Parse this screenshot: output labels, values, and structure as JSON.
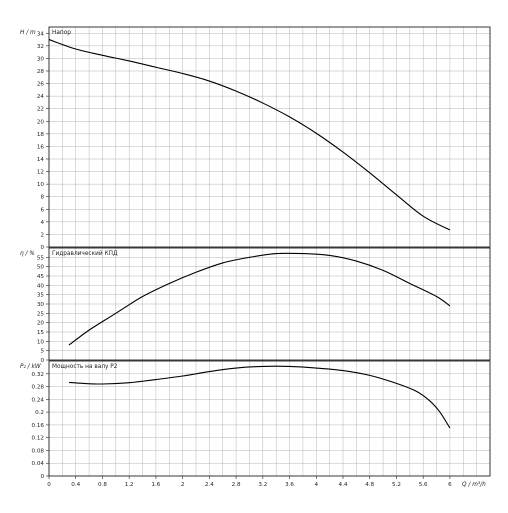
{
  "chart_data": [
    {
      "type": "line",
      "title": "Напор",
      "ylabel": "H / m",
      "ylim": [
        0,
        35
      ],
      "yticks": [
        0,
        2,
        4,
        6,
        8,
        10,
        12,
        14,
        16,
        18,
        20,
        22,
        24,
        26,
        28,
        30,
        32,
        34
      ],
      "xlim": [
        0,
        6.6
      ],
      "grid": true,
      "series": [
        {
          "x": [
            0,
            0.4,
            0.8,
            1.2,
            1.6,
            2.0,
            2.4,
            2.8,
            3.2,
            3.6,
            4.0,
            4.4,
            4.8,
            5.2,
            5.6,
            6.0
          ],
          "y": [
            33.0,
            31.5,
            30.5,
            29.6,
            28.6,
            27.6,
            26.4,
            24.8,
            22.9,
            20.7,
            18.1,
            15.1,
            11.8,
            8.3,
            4.9,
            2.7
          ]
        }
      ]
    },
    {
      "type": "line",
      "title": "Гидравлический КПД",
      "ylabel": "η / %",
      "ylim": [
        0,
        60
      ],
      "yticks": [
        0,
        5,
        10,
        15,
        20,
        25,
        30,
        35,
        40,
        45,
        50,
        55
      ],
      "xlim": [
        0,
        6.6
      ],
      "grid": true,
      "series": [
        {
          "x": [
            0.3,
            0.6,
            1.0,
            1.4,
            1.8,
            2.2,
            2.6,
            3.0,
            3.4,
            3.8,
            4.2,
            4.6,
            5.0,
            5.4,
            5.8,
            6.0
          ],
          "y": [
            8,
            16,
            25,
            34,
            41,
            47,
            52,
            55,
            57,
            57,
            56,
            53,
            48,
            41,
            34,
            29
          ]
        }
      ]
    },
    {
      "type": "line",
      "title": "Мощность на валу P2",
      "ylabel": "P₂ / kW",
      "ylim": [
        0,
        0.36
      ],
      "yticks": [
        "0",
        "0.04",
        "0.08",
        "0.12",
        "0.16",
        "0.2",
        "0.24",
        "0.28",
        "0.32"
      ],
      "xlabel": "Q / m³/h",
      "xlim": [
        0,
        6.6
      ],
      "xticks": [
        "0",
        "0.4",
        "0.8",
        "1.2",
        "1.6",
        "2",
        "2.4",
        "2.8",
        "3.2",
        "3.6",
        "4",
        "4.4",
        "4.8",
        "5.2",
        "5.6",
        "6"
      ],
      "grid": true,
      "series": [
        {
          "x": [
            0.3,
            0.5,
            0.8,
            1.2,
            1.6,
            2.0,
            2.4,
            2.8,
            3.2,
            3.6,
            4.0,
            4.4,
            4.8,
            5.2,
            5.5,
            5.7,
            5.85,
            6.0
          ],
          "y": [
            0.293,
            0.29,
            0.288,
            0.292,
            0.302,
            0.313,
            0.327,
            0.338,
            0.343,
            0.343,
            0.338,
            0.33,
            0.315,
            0.29,
            0.265,
            0.235,
            0.2,
            0.15
          ]
        }
      ]
    }
  ]
}
